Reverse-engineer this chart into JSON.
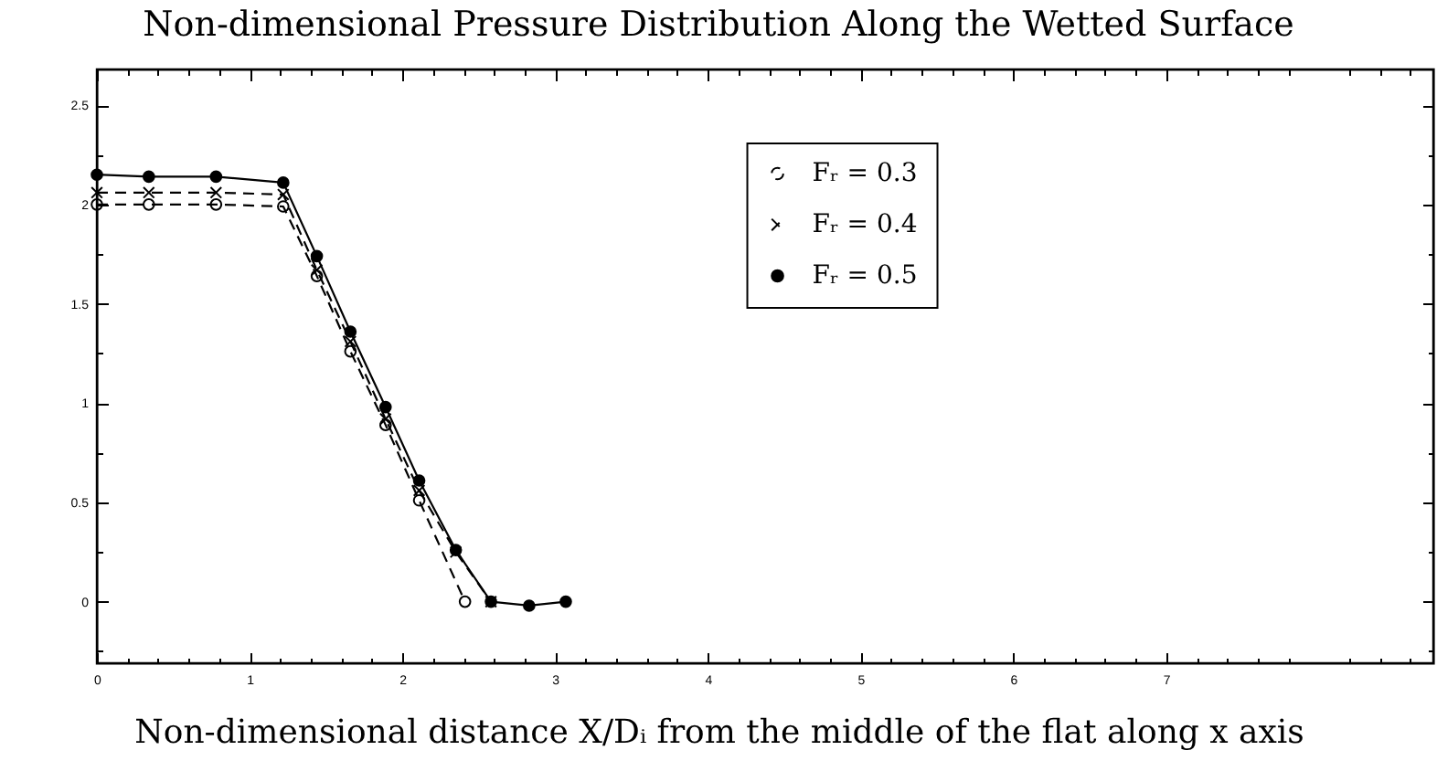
{
  "chart_data": {
    "type": "line",
    "title": "Non-dimensional Pressure Distribution Along the Wetted Surface",
    "xlabel": "Non-dimensional distance X/Dᵢ from the middle of the flat along x axis",
    "xlim": [
      0,
      8.75
    ],
    "ylim": [
      -0.31,
      2.68
    ],
    "xticks": [
      0,
      {
        "value": 0.2,
        "label": null
      },
      {
        "value": 0.4,
        "label": null
      },
      {
        "value": 0.6,
        "label": null
      },
      {
        "value": 0.8,
        "label": null
      },
      1,
      {
        "value": 1.2,
        "label": null
      },
      {
        "value": 1.4,
        "label": null
      },
      {
        "value": 1.6,
        "label": null
      },
      {
        "value": 1.8,
        "label": null
      },
      2,
      {
        "value": 2.2,
        "label": null
      },
      {
        "value": 2.4,
        "label": null
      },
      {
        "value": 2.6,
        "label": null
      },
      {
        "value": 2.8,
        "label": null
      },
      3,
      {
        "value": 3.2,
        "label": null
      },
      {
        "value": 3.4,
        "label": null
      },
      {
        "value": 3.6,
        "label": null
      },
      {
        "value": 3.8,
        "label": null
      },
      4,
      {
        "value": 4.2,
        "label": null
      },
      {
        "value": 4.4,
        "label": null
      },
      {
        "value": 4.6,
        "label": null
      },
      {
        "value": 4.8,
        "label": null
      },
      5,
      {
        "value": 5.2,
        "label": null
      },
      {
        "value": 5.4,
        "label": null
      },
      {
        "value": 5.6,
        "label": null
      },
      {
        "value": 5.8,
        "label": null
      },
      6,
      {
        "value": 6.2,
        "label": null
      },
      {
        "value": 6.4,
        "label": null
      },
      {
        "value": 6.6,
        "label": null
      },
      {
        "value": 6.8,
        "label": null
      },
      7,
      {
        "value": 7.2,
        "label": null
      },
      {
        "value": 7.4,
        "label": null
      },
      {
        "value": 7.6,
        "label": null
      },
      {
        "value": 7.8,
        "label": null
      },
      {
        "value": 8.2,
        "label": null
      },
      {
        "value": 8.4,
        "label": null
      },
      {
        "value": 8.6,
        "label": null
      }
    ],
    "yticks": [
      {
        "value": -0.25,
        "label": null
      },
      0,
      {
        "value": 0.25,
        "label": null
      },
      0.5,
      {
        "value": 0.75,
        "label": null
      },
      1,
      {
        "value": 1.25,
        "label": null
      },
      1.5,
      {
        "value": 1.75,
        "label": null
      },
      2,
      {
        "value": 2.25,
        "label": null
      },
      2.5
    ],
    "legend": "top right",
    "series": [
      {
        "name": "Fᵣ = 0.3",
        "color": "#000000",
        "line_style": "dashed",
        "marker": "circle",
        "x": [
          0,
          0.34,
          0.78,
          1.22,
          1.44,
          1.66,
          1.89,
          2.11,
          2.41
        ],
        "values": [
          2.0,
          2.0,
          2.0,
          1.99,
          1.64,
          1.26,
          0.89,
          0.51,
          0.0
        ]
      },
      {
        "name": "Fᵣ = 0.4",
        "color": "#000000",
        "line_style": "dashed",
        "marker": "cross",
        "x": [
          0,
          0.34,
          0.78,
          1.22,
          1.44,
          1.66,
          1.89,
          2.11,
          2.35,
          2.58
        ],
        "values": [
          2.06,
          2.06,
          2.06,
          2.05,
          1.67,
          1.31,
          0.92,
          0.56,
          0.25,
          0.0
        ]
      },
      {
        "name": "Fᵣ = 0.5",
        "color": "#000000",
        "line_style": "solid",
        "marker": "circle",
        "x": [
          0,
          0.34,
          0.78,
          1.22,
          1.44,
          1.66,
          1.89,
          2.11,
          2.35,
          2.58,
          2.83,
          3.07
        ],
        "values": [
          2.15,
          2.14,
          2.14,
          2.11,
          1.74,
          1.36,
          0.98,
          0.61,
          0.26,
          0.0,
          -0.02,
          0.0
        ]
      }
    ]
  }
}
